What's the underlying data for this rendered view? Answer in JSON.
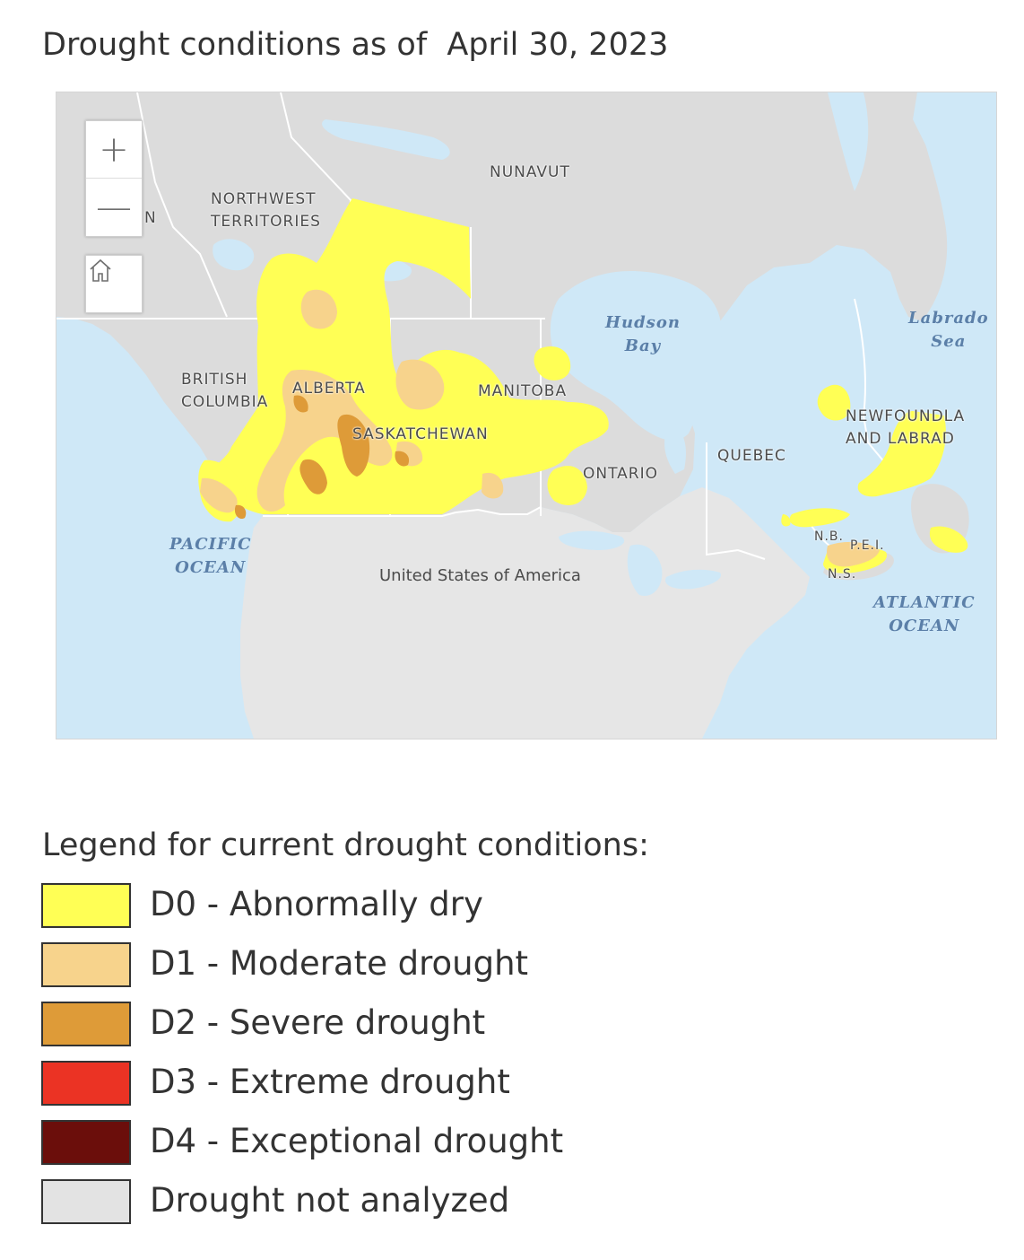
{
  "title": "Drought conditions as of  April 30, 2023",
  "map": {
    "controls": {
      "zoom_in_label": "+",
      "zoom_out_label": "—",
      "zoom_in_icon": "plus-icon",
      "zoom_out_icon": "minus-icon",
      "home_icon": "home-icon"
    },
    "labels": {
      "yukon_partial": "N",
      "northwest_territories": "NORTHWEST\nTERRITORIES",
      "nunavut": "NUNAVUT",
      "british_columbia": "BRITISH\nCOLUMBIA",
      "alberta": "ALBERTA",
      "saskatchewan": "SASKATCHEWAN",
      "manitoba": "MANITOBA",
      "ontario": "ONTARIO",
      "quebec": "QUEBEC",
      "newfoundland": "NEWFOUNDLA\nAND LABRAD",
      "nb": "N.B.",
      "pei": "P.E.I.",
      "ns": "N.S.",
      "usa": "United States of America"
    },
    "water_labels": {
      "hudson_bay": "Hudson\nBay",
      "labrador_sea": "Labrado\nSea",
      "pacific_ocean": "PACIFIC\nOCEAN",
      "atlantic_ocean": "ATLANTIC\nOCEAN"
    },
    "colors": {
      "water": "#cfe8f7",
      "land": "#dcdcdc",
      "usa_land": "#e6e6e6",
      "boundary": "#ffffff"
    }
  },
  "legend": {
    "title": "Legend for current drought conditions:",
    "items": [
      {
        "code": "D0",
        "label": "D0 - Abnormally dry",
        "color": "#ffff55"
      },
      {
        "code": "D1",
        "label": "D1 - Moderate drought",
        "color": "#f7d38c"
      },
      {
        "code": "D2",
        "label": "D2 - Severe drought",
        "color": "#de9b38"
      },
      {
        "code": "D3",
        "label": "D3 - Extreme drought",
        "color": "#eb3324"
      },
      {
        "code": "D4",
        "label": "D4 - Exceptional drought",
        "color": "#6b0e0b"
      },
      {
        "code": "NA",
        "label": "Drought not analyzed",
        "color": "#e3e3e3"
      }
    ]
  }
}
